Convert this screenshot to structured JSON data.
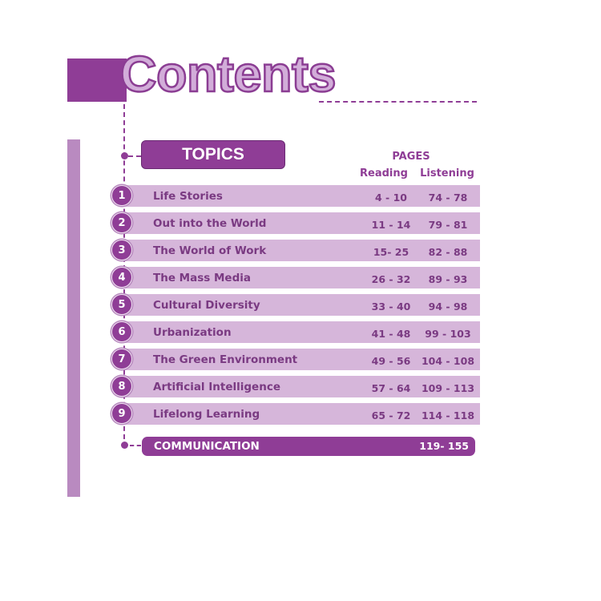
{
  "title": "Contents",
  "topics_label": "TOPICS",
  "headers": {
    "pages": "PAGES",
    "reading": "Reading",
    "listening": "Listening"
  },
  "units": [
    {
      "num": "1",
      "topic": "Life Stories",
      "reading": "4 - 10",
      "listening": "74 - 78"
    },
    {
      "num": "2",
      "topic": "Out into the World",
      "reading": "11 - 14",
      "listening": "79 - 81"
    },
    {
      "num": "3",
      "topic": "The World of Work",
      "reading": "15- 25",
      "listening": "82 - 88"
    },
    {
      "num": "4",
      "topic": "The Mass Media",
      "reading": "26 - 32",
      "listening": "89 - 93"
    },
    {
      "num": "5",
      "topic": "Cultural Diversity",
      "reading": "33 - 40",
      "listening": "94 - 98"
    },
    {
      "num": "6",
      "topic": "Urbanization",
      "reading": "41 - 48",
      "listening": "99 - 103"
    },
    {
      "num": "7",
      "topic": "The Green Environment",
      "reading": "49 - 56",
      "listening": "104 - 108"
    },
    {
      "num": "8",
      "topic": "Artificial Intelligence",
      "reading": "57 - 64",
      "listening": "109 - 113"
    },
    {
      "num": "9",
      "topic": "Lifelong Learning",
      "reading": "65 - 72",
      "listening": "114 - 118"
    }
  ],
  "communication": {
    "label": "COMMUNICATION",
    "pages": "119- 155"
  },
  "colors": {
    "primary": "#8f3d96",
    "row": "#d6b6da",
    "title_fill": "#d2add9",
    "side_bar": "#b98ac0",
    "text": "#7a3a82"
  }
}
